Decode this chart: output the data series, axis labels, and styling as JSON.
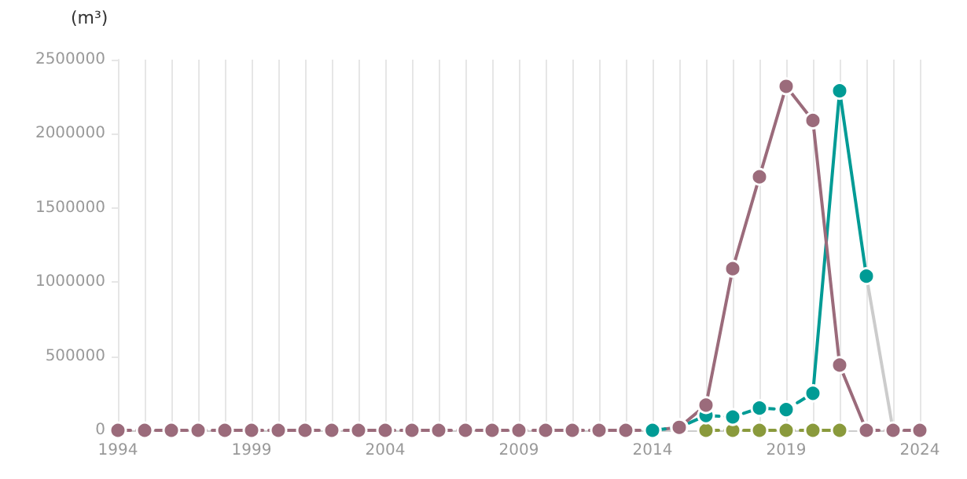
{
  "chart_data": {
    "type": "line",
    "ylabel": "(m³)",
    "xlim": [
      1994,
      2024
    ],
    "xticks": [
      1994,
      {
        "value": 1995,
        "label": null
      },
      {
        "value": 1996,
        "label": null
      },
      {
        "value": 1997,
        "label": null
      },
      {
        "value": 1998,
        "label": null
      },
      1999,
      {
        "value": 2000,
        "label": null
      },
      {
        "value": 2001,
        "label": null
      },
      {
        "value": 2002,
        "label": null
      },
      {
        "value": 2003,
        "label": null
      },
      2004,
      {
        "value": 2005,
        "label": null
      },
      {
        "value": 2006,
        "label": null
      },
      {
        "value": 2007,
        "label": null
      },
      {
        "value": 2008,
        "label": null
      },
      2009,
      {
        "value": 2010,
        "label": null
      },
      {
        "value": 2011,
        "label": null
      },
      {
        "value": 2012,
        "label": null
      },
      {
        "value": 2013,
        "label": null
      },
      2014,
      {
        "value": 2015,
        "label": null
      },
      {
        "value": 2016,
        "label": null
      },
      {
        "value": 2017,
        "label": null
      },
      {
        "value": 2018,
        "label": null
      },
      2019,
      {
        "value": 2020,
        "label": null
      },
      {
        "value": 2021,
        "label": null
      },
      {
        "value": 2022,
        "label": null
      },
      {
        "value": 2023,
        "label": null
      },
      2024
    ],
    "ylim": [
      0,
      2500000
    ],
    "yticks": [
      0,
      500000,
      1000000,
      1500000,
      2000000,
      2500000
    ],
    "grid": "x",
    "marker": "circle",
    "series": [
      {
        "color": "#9b6b7b",
        "line_style": "dashed",
        "x": [
          1994,
          1995,
          1996,
          1997,
          1998,
          1999,
          2000,
          2001,
          2002,
          2003,
          2004,
          2005,
          2006,
          2007,
          2008,
          2009,
          2010,
          2011,
          2012,
          2013,
          2014,
          2015
        ],
        "values": [
          0,
          0,
          0,
          0,
          0,
          0,
          0,
          0,
          0,
          0,
          0,
          0,
          0,
          0,
          0,
          0,
          0,
          0,
          0,
          0,
          0,
          20000
        ]
      },
      {
        "color": "#8a9a3c",
        "line_style": "dashed",
        "x": [
          2016,
          2017,
          2018,
          2019,
          2020,
          2021
        ],
        "values": [
          0,
          0,
          0,
          0,
          0,
          0
        ]
      },
      {
        "color": "#cccccc",
        "line_style": "solid",
        "marker": "none",
        "x": [
          2022,
          2023
        ],
        "values": [
          1040000,
          0
        ]
      },
      {
        "color": "#009b95",
        "line_style": "dashed",
        "x": [
          2014,
          2015,
          2016,
          2017,
          2018,
          2019,
          2020
        ],
        "values": [
          0,
          20000,
          100000,
          90000,
          150000,
          140000,
          250000
        ]
      },
      {
        "color": "#009b95",
        "line_style": "solid",
        "x": [
          2020,
          2021,
          2022
        ],
        "values": [
          250000,
          2290000,
          1040000
        ]
      },
      {
        "color": "#9b6b7b",
        "line_style": "solid",
        "x": [
          2015,
          2016,
          2017,
          2018,
          2019,
          2020,
          2021,
          2022
        ],
        "values": [
          20000,
          170000,
          1090000,
          1710000,
          2320000,
          2090000,
          440000,
          0
        ]
      },
      {
        "color": "#9b6b7b",
        "line_style": "dashed",
        "x": [
          2022,
          2023,
          2024
        ],
        "values": [
          0,
          0,
          0
        ]
      }
    ]
  }
}
